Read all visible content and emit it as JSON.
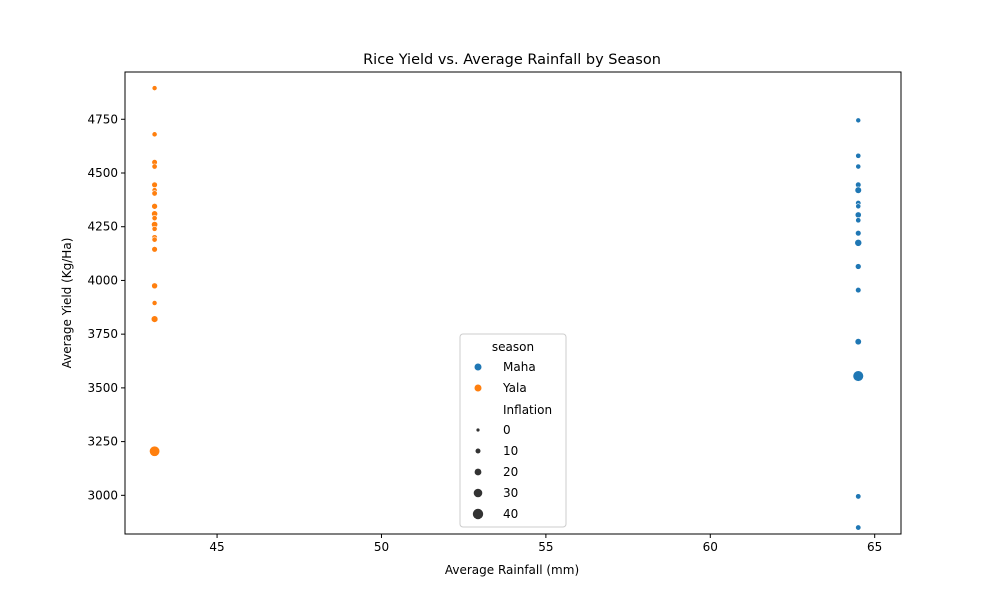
{
  "chart_data": {
    "type": "scatter",
    "title": "Rice Yield vs. Average Rainfall by Season",
    "xlabel": "Average Rainfall (mm)",
    "ylabel": "Average Yield (Kg/Ha)",
    "xlim": [
      42.2,
      65.8
    ],
    "ylim": [
      2820,
      4970
    ],
    "xticks": [
      45,
      50,
      55,
      60,
      65
    ],
    "yticks": [
      3000,
      3250,
      3500,
      3750,
      4000,
      4250,
      4500,
      4750
    ],
    "grid": false,
    "legend": {
      "placement": "lower-center",
      "hue_title": "season",
      "size_title": "Inflation",
      "size_levels": [
        0,
        10,
        20,
        30,
        40
      ]
    },
    "series": [
      {
        "name": "Maha",
        "color": "#1f77b4",
        "points": [
          {
            "x": 64.5,
            "y": 4745,
            "inflation": 3
          },
          {
            "x": 64.5,
            "y": 4580,
            "inflation": 5
          },
          {
            "x": 64.5,
            "y": 4530,
            "inflation": 4
          },
          {
            "x": 64.5,
            "y": 4445,
            "inflation": 7
          },
          {
            "x": 64.5,
            "y": 4420,
            "inflation": 14
          },
          {
            "x": 64.5,
            "y": 4360,
            "inflation": 6
          },
          {
            "x": 64.5,
            "y": 4345,
            "inflation": 4
          },
          {
            "x": 64.5,
            "y": 4305,
            "inflation": 11
          },
          {
            "x": 64.5,
            "y": 4280,
            "inflation": 5
          },
          {
            "x": 64.5,
            "y": 4220,
            "inflation": 8
          },
          {
            "x": 64.5,
            "y": 4175,
            "inflation": 17
          },
          {
            "x": 64.5,
            "y": 4065,
            "inflation": 9
          },
          {
            "x": 64.5,
            "y": 3955,
            "inflation": 7
          },
          {
            "x": 64.5,
            "y": 3715,
            "inflation": 13
          },
          {
            "x": 64.5,
            "y": 3555,
            "inflation": 42
          },
          {
            "x": 64.5,
            "y": 2995,
            "inflation": 6
          },
          {
            "x": 64.5,
            "y": 2850,
            "inflation": 6
          }
        ]
      },
      {
        "name": "Yala",
        "color": "#ff7f0e",
        "points": [
          {
            "x": 43.1,
            "y": 4895,
            "inflation": 3
          },
          {
            "x": 43.1,
            "y": 4680,
            "inflation": 4
          },
          {
            "x": 43.1,
            "y": 4550,
            "inflation": 7
          },
          {
            "x": 43.1,
            "y": 4530,
            "inflation": 5
          },
          {
            "x": 43.1,
            "y": 4445,
            "inflation": 8
          },
          {
            "x": 43.1,
            "y": 4420,
            "inflation": 4
          },
          {
            "x": 43.1,
            "y": 4405,
            "inflation": 6
          },
          {
            "x": 43.1,
            "y": 4345,
            "inflation": 9
          },
          {
            "x": 43.1,
            "y": 4310,
            "inflation": 11
          },
          {
            "x": 43.1,
            "y": 4290,
            "inflation": 5
          },
          {
            "x": 43.1,
            "y": 4260,
            "inflation": 12
          },
          {
            "x": 43.1,
            "y": 4240,
            "inflation": 4
          },
          {
            "x": 43.1,
            "y": 4200,
            "inflation": 7
          },
          {
            "x": 43.1,
            "y": 4190,
            "inflation": 5
          },
          {
            "x": 43.1,
            "y": 4145,
            "inflation": 8
          },
          {
            "x": 43.1,
            "y": 3975,
            "inflation": 10
          },
          {
            "x": 43.1,
            "y": 3895,
            "inflation": 3
          },
          {
            "x": 43.1,
            "y": 3820,
            "inflation": 15
          },
          {
            "x": 43.1,
            "y": 3205,
            "inflation": 40
          }
        ]
      }
    ]
  }
}
